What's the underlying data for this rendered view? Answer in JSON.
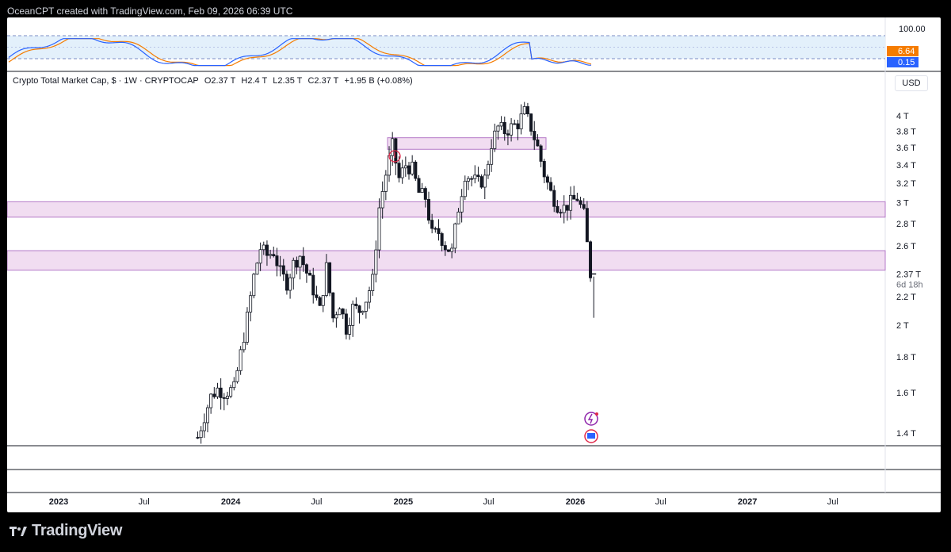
{
  "header": {
    "attribution": "OceanCPT created with TradingView.com, Feb 09, 2026 06:39 UTC"
  },
  "footer": {
    "brand": "TradingView"
  },
  "legend": {
    "title": "Crypto Total Market Cap, $ · 1W · CRYPTOCAP",
    "open": "O2.37 T",
    "high": "H2.4 T",
    "low": "L2.35 T",
    "close": "C2.37 T",
    "change": "+1.95 B (+0.08%)"
  },
  "currency_button": "USD",
  "oscillator": {
    "top_label": "100.00",
    "value_orange": "6.64",
    "value_blue": "0.15",
    "colors": {
      "k_line": "#2962ff",
      "d_line": "#f57c00",
      "band": "#e3f0fb"
    }
  },
  "price_badge": {
    "price": "2.37 T",
    "countdown": "6d 18h"
  },
  "colors": {
    "zone_fill": "#f1ddf1",
    "zone_stroke": "#b57ac8",
    "bull": "#ffffff",
    "bear": "#131722"
  },
  "chart_data": {
    "type": "candlestick",
    "symbol": "CRYPTOCAP",
    "interval": "1W",
    "y_axis": {
      "scale": "log",
      "range": [
        1.35,
        4.2
      ],
      "ticks": [
        1.4,
        1.6,
        1.8,
        2,
        2.2,
        2.6,
        2.8,
        3,
        3.2,
        3.4,
        3.6,
        3.8,
        4
      ],
      "tick_labels": [
        "1.4 T",
        "1.6 T",
        "1.8 T",
        "2 T",
        "2.2 T",
        "2.6 T",
        "2.8 T",
        "3 T",
        "3.2 T",
        "3.4 T",
        "3.6 T",
        "3.8 T",
        "4 T"
      ]
    },
    "x_axis": {
      "labels": [
        {
          "label": "2023",
          "date": "2023-01-01",
          "bold": true
        },
        {
          "label": "Jul",
          "date": "2023-07-01",
          "bold": false
        },
        {
          "label": "2024",
          "date": "2024-01-01",
          "bold": true
        },
        {
          "label": "Jul",
          "date": "2024-07-01",
          "bold": false
        },
        {
          "label": "2025",
          "date": "2025-01-01",
          "bold": true
        },
        {
          "label": "Jul",
          "date": "2025-07-01",
          "bold": false
        },
        {
          "label": "2026",
          "date": "2026-01-01",
          "bold": true
        },
        {
          "label": "Jul",
          "date": "2026-07-01",
          "bold": false
        },
        {
          "label": "2027",
          "date": "2027-01-01",
          "bold": true
        },
        {
          "label": "Jul",
          "date": "2027-07-01",
          "bold": false
        }
      ]
    },
    "zones": [
      {
        "low": 3.58,
        "high": 3.72
      },
      {
        "low": 2.86,
        "high": 3.01
      },
      {
        "low": 2.4,
        "high": 2.56
      }
    ],
    "closes": [
      {
        "date": "2023-10-23",
        "close": 1.38
      },
      {
        "date": "2023-11-06",
        "close": 1.48
      },
      {
        "date": "2023-11-20",
        "close": 1.58
      },
      {
        "date": "2023-12-04",
        "close": 1.62
      },
      {
        "date": "2023-12-18",
        "close": 1.6
      },
      {
        "date": "2024-01-08",
        "close": 1.62
      },
      {
        "date": "2024-01-22",
        "close": 1.82
      },
      {
        "date": "2024-02-05",
        "close": 2.05
      },
      {
        "date": "2024-02-19",
        "close": 2.35
      },
      {
        "date": "2024-03-04",
        "close": 2.58
      },
      {
        "date": "2024-03-18",
        "close": 2.52
      },
      {
        "date": "2024-04-01",
        "close": 2.55
      },
      {
        "date": "2024-04-15",
        "close": 2.38
      },
      {
        "date": "2024-04-29",
        "close": 2.3
      },
      {
        "date": "2024-05-13",
        "close": 2.45
      },
      {
        "date": "2024-05-27",
        "close": 2.52
      },
      {
        "date": "2024-06-10",
        "close": 2.38
      },
      {
        "date": "2024-06-24",
        "close": 2.25
      },
      {
        "date": "2024-07-08",
        "close": 2.1
      },
      {
        "date": "2024-07-22",
        "close": 2.42
      },
      {
        "date": "2024-08-05",
        "close": 2.05
      },
      {
        "date": "2024-08-19",
        "close": 2.15
      },
      {
        "date": "2024-09-02",
        "close": 1.98
      },
      {
        "date": "2024-09-16",
        "close": 2.12
      },
      {
        "date": "2024-09-30",
        "close": 2.1
      },
      {
        "date": "2024-10-14",
        "close": 2.18
      },
      {
        "date": "2024-10-28",
        "close": 2.32
      },
      {
        "date": "2024-11-11",
        "close": 2.95
      },
      {
        "date": "2024-11-25",
        "close": 3.3
      },
      {
        "date": "2024-12-09",
        "close": 3.62
      },
      {
        "date": "2024-12-23",
        "close": 3.25
      },
      {
        "date": "2025-01-06",
        "close": 3.4
      },
      {
        "date": "2025-01-20",
        "close": 3.35
      },
      {
        "date": "2025-02-03",
        "close": 3.1
      },
      {
        "date": "2025-02-17",
        "close": 3.05
      },
      {
        "date": "2025-03-03",
        "close": 2.7
      },
      {
        "date": "2025-03-17",
        "close": 2.72
      },
      {
        "date": "2025-03-31",
        "close": 2.6
      },
      {
        "date": "2025-04-14",
        "close": 2.55
      },
      {
        "date": "2025-04-28",
        "close": 2.95
      },
      {
        "date": "2025-05-12",
        "close": 3.3
      },
      {
        "date": "2025-05-26",
        "close": 3.25
      },
      {
        "date": "2025-06-09",
        "close": 3.2
      },
      {
        "date": "2025-06-23",
        "close": 3.25
      },
      {
        "date": "2025-07-07",
        "close": 3.65
      },
      {
        "date": "2025-07-21",
        "close": 3.85
      },
      {
        "date": "2025-08-04",
        "close": 3.8
      },
      {
        "date": "2025-08-18",
        "close": 3.85
      },
      {
        "date": "2025-09-01",
        "close": 3.9
      },
      {
        "date": "2025-09-15",
        "close": 4.05
      },
      {
        "date": "2025-09-29",
        "close": 3.85
      },
      {
        "date": "2025-10-13",
        "close": 3.6
      },
      {
        "date": "2025-10-27",
        "close": 3.3
      },
      {
        "date": "2025-11-10",
        "close": 3.1
      },
      {
        "date": "2025-11-24",
        "close": 2.98
      },
      {
        "date": "2025-12-08",
        "close": 2.95
      },
      {
        "date": "2025-12-22",
        "close": 3.0
      },
      {
        "date": "2026-01-05",
        "close": 3.05
      },
      {
        "date": "2026-01-19",
        "close": 2.88
      },
      {
        "date": "2026-02-02",
        "close": 2.37
      }
    ],
    "last_candle": {
      "date": "2026-02-09",
      "open": 2.37,
      "high": 2.4,
      "low": 2.35,
      "close": 2.37
    },
    "stochastic": {
      "upper": 80,
      "lower": 20,
      "top_label": 100.0,
      "k_last": 0.15,
      "d_last": 6.64
    }
  }
}
